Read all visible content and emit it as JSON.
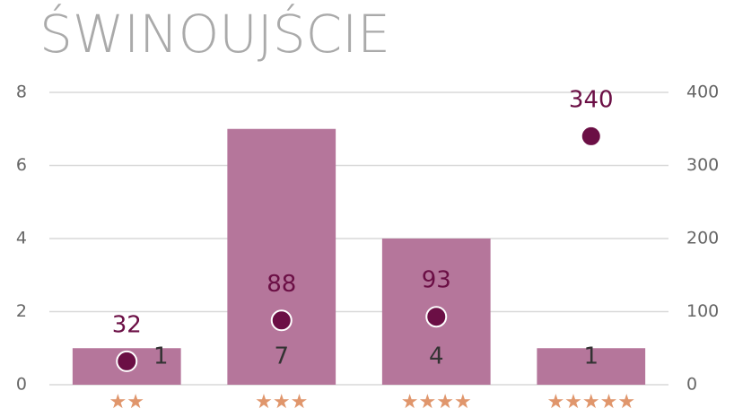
{
  "chart_data": {
    "type": "bar",
    "title": "ŚWINOUJŚCIE",
    "categories": [
      "★★",
      "★★★",
      "★★★★",
      "★★★★★"
    ],
    "series": [
      {
        "type": "bar",
        "color": "#b5769b",
        "values": [
          1,
          7,
          4,
          1
        ]
      },
      {
        "type": "scatter",
        "axis": "y2",
        "color": "#6b0f45",
        "values": [
          32,
          88,
          93,
          340
        ]
      }
    ],
    "ylim": [
      0,
      8
    ],
    "yticks": [
      0,
      2,
      4,
      6,
      8
    ],
    "y2lim": [
      0,
      400
    ],
    "y2ticks": [
      0,
      100,
      200,
      300,
      400
    ],
    "grid": true
  }
}
